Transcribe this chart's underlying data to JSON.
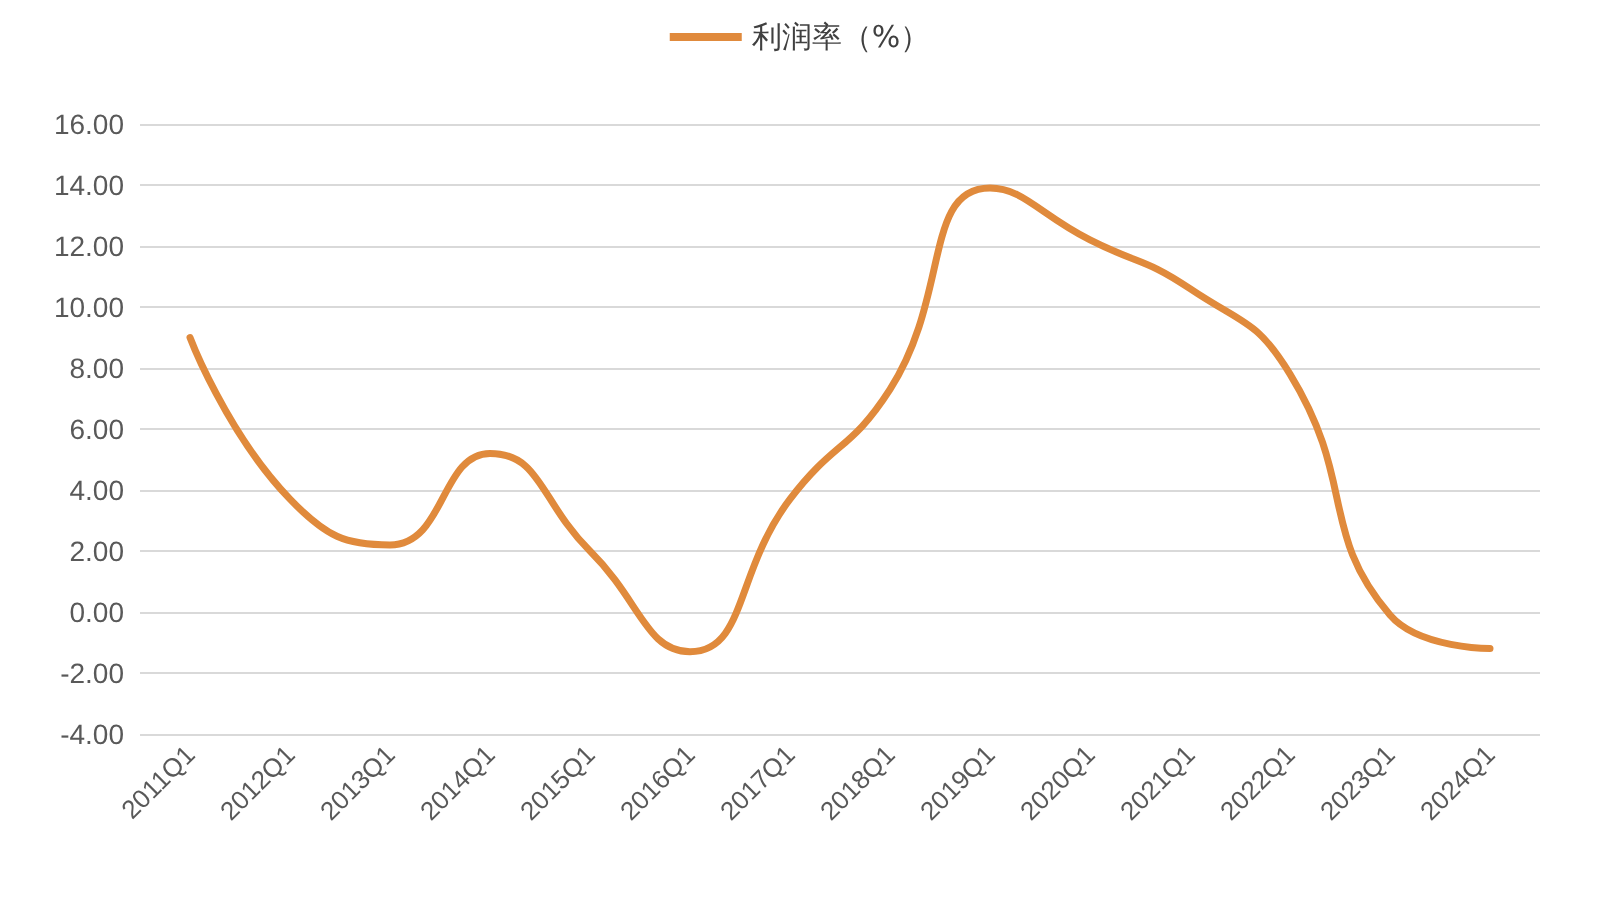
{
  "chart_data": {
    "type": "line",
    "categories": [
      "2011Q1",
      "2012Q1",
      "2013Q1",
      "2014Q1",
      "2015Q1",
      "2016Q1",
      "2017Q1",
      "2018Q1",
      "2019Q1",
      "2020Q1",
      "2021Q1",
      "2022Q1",
      "2023Q1",
      "2024Q1"
    ],
    "series": [
      {
        "name": "利润率（%）",
        "color": "#e08a3c",
        "values": [
          9.0,
          3.7,
          2.2,
          5.2,
          2.0,
          -1.3,
          3.7,
          7.3,
          13.9,
          12.2,
          10.6,
          7.8,
          -0.1,
          -1.2
        ]
      }
    ],
    "ylim": [
      -4,
      16
    ],
    "yticks": [
      {
        "value": -4,
        "label": "-4.00"
      },
      {
        "value": -2,
        "label": "-2.00"
      },
      {
        "value": 0,
        "label": "0.00"
      },
      {
        "value": 2,
        "label": "2.00"
      },
      {
        "value": 4,
        "label": "4.00"
      },
      {
        "value": 6,
        "label": "6.00"
      },
      {
        "value": 8,
        "label": "8.00"
      },
      {
        "value": 10,
        "label": "10.00"
      },
      {
        "value": 12,
        "label": "12.00"
      },
      {
        "value": 14,
        "label": "14.00"
      },
      {
        "value": 16,
        "label": "16.00"
      }
    ],
    "grid": "y",
    "legend": "top",
    "marker": "none",
    "line_style": "solid"
  }
}
